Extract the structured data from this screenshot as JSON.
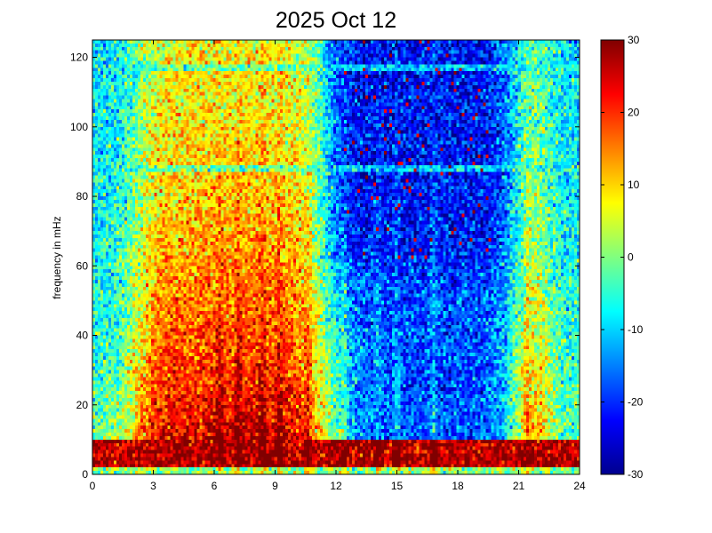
{
  "chart_data": {
    "type": "heatmap",
    "title": "2025 Oct 12",
    "xlabel": "",
    "ylabel": "frequency in mHz",
    "xlim": [
      0,
      24
    ],
    "ylim": [
      0,
      125
    ],
    "x_ticks": [
      0,
      3,
      6,
      9,
      12,
      15,
      18,
      21,
      24
    ],
    "y_ticks": [
      0,
      20,
      40,
      60,
      80,
      100,
      120
    ],
    "colorbar": {
      "range": [
        -30,
        30
      ],
      "ticks": [
        30,
        20,
        10,
        0,
        -10,
        -20,
        -30
      ],
      "colormap": "jet"
    },
    "features": {
      "low_frequency_band_mHz": [
        0,
        10
      ],
      "low_frequency_level": 28,
      "quiet_region": {
        "hours": [
          12,
          20
        ],
        "mHz": [
          60,
          125
        ],
        "level": -22
      },
      "active_region": {
        "hours": [
          3,
          11
        ],
        "mHz": [
          0,
          80
        ],
        "level": 15
      },
      "horizontal_lines_mHz": [
        117,
        88
      ],
      "noise_burst_hours": [
        6.3,
        7.2,
        8.4,
        9.2,
        10.6,
        12.4,
        14.1,
        15.0,
        16.8,
        21.4
      ]
    }
  }
}
